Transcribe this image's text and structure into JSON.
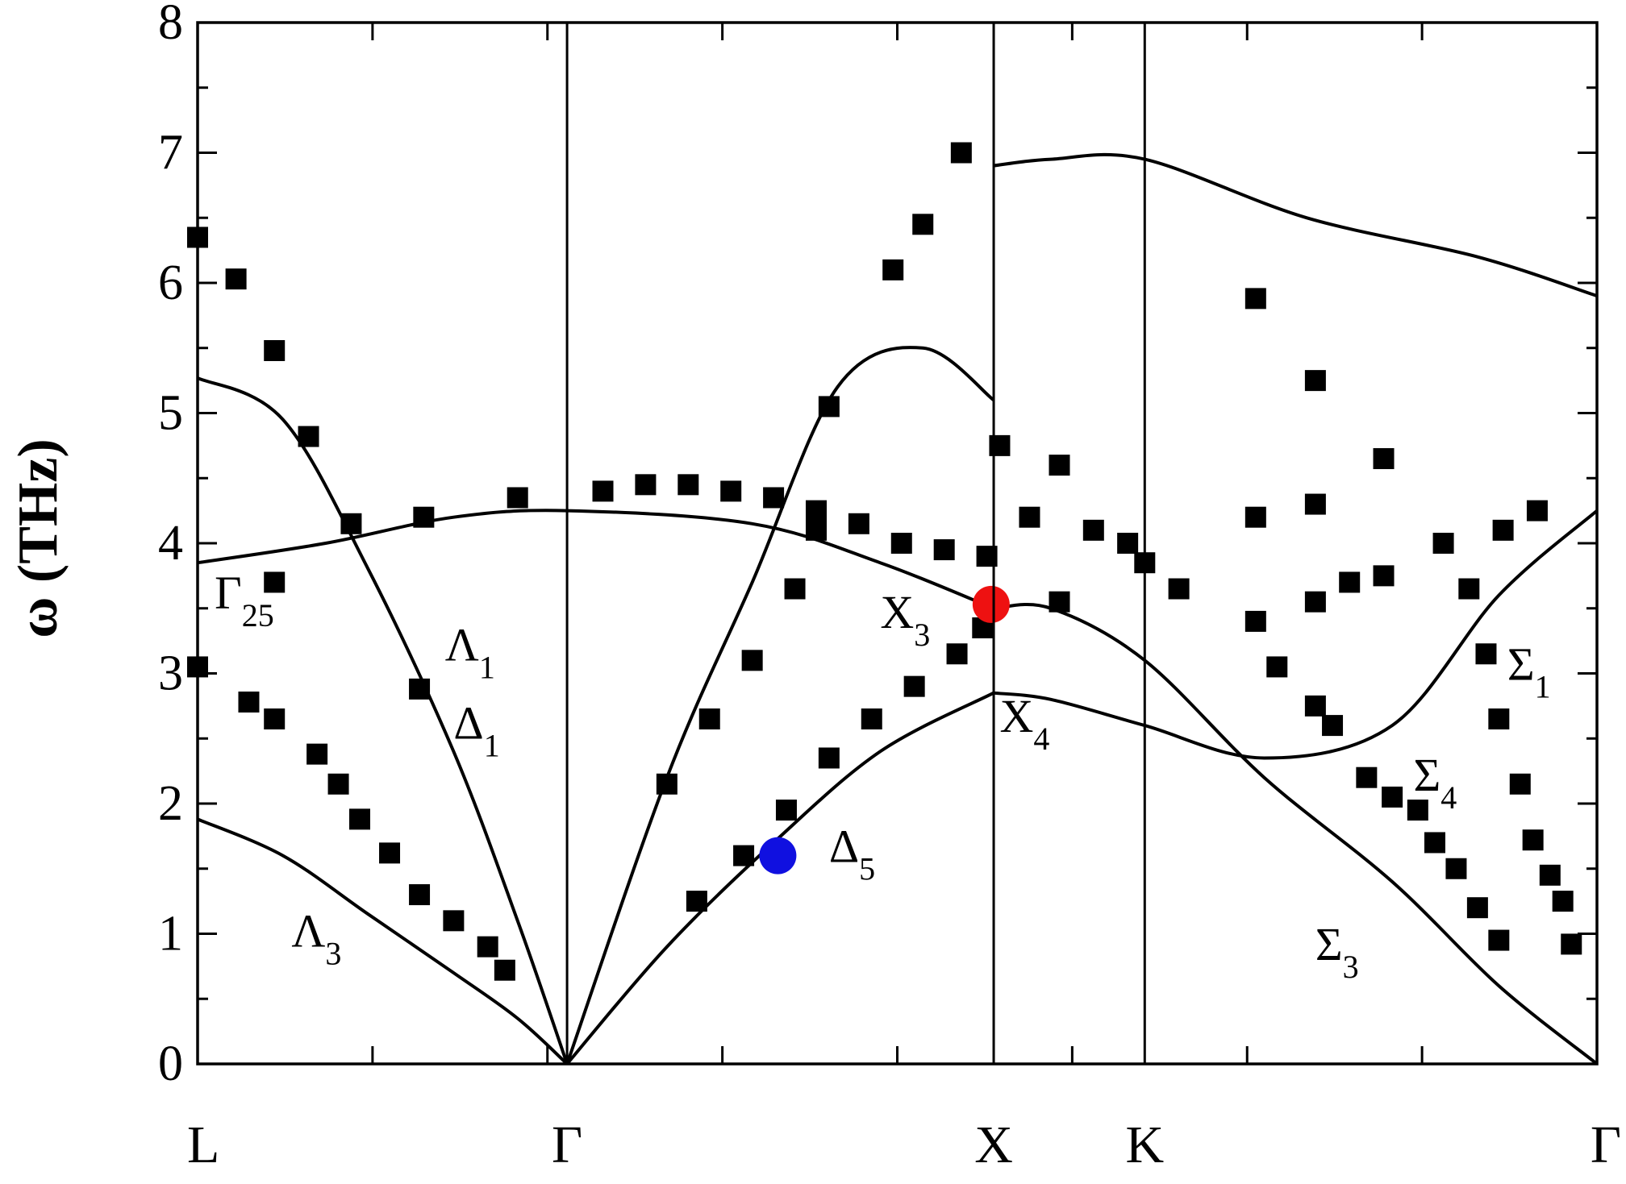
{
  "chart_data": {
    "type": "line",
    "ylabel": "ω (THz)",
    "ylim": [
      0,
      8
    ],
    "yticks": [
      0,
      1,
      2,
      3,
      4,
      5,
      6,
      7,
      8
    ],
    "x_points": [
      "L",
      "Γ",
      "X",
      "K",
      "Γ"
    ],
    "x_path_positions": [
      0,
      0.866,
      1.866,
      2.22,
      3.28
    ],
    "grid": false,
    "legend": "none",
    "branches": [
      {
        "x": [
          0,
          0.2,
          0.4,
          0.6,
          0.75,
          0.866
        ],
        "y": [
          1.88,
          1.6,
          1.15,
          0.7,
          0.35,
          0
        ]
      },
      {
        "x": [
          0,
          0.2,
          0.4,
          0.6,
          0.75,
          0.866
        ],
        "y": [
          5.27,
          4.95,
          3.8,
          2.4,
          1.1,
          0
        ]
      },
      {
        "x": [
          0.866,
          1.1,
          1.35,
          1.6,
          1.866
        ],
        "y": [
          0,
          0.9,
          1.7,
          2.4,
          2.85
        ]
      },
      {
        "x": [
          0.866,
          1.1,
          1.3,
          1.5,
          1.7,
          1.866
        ],
        "y": [
          0,
          2.2,
          3.7,
          5.2,
          5.5,
          5.1
        ]
      },
      {
        "x": [
          1.866,
          2.0,
          2.22,
          2.5,
          2.8,
          3.05,
          3.28
        ],
        "y": [
          2.85,
          2.8,
          2.6,
          2.35,
          2.6,
          3.6,
          4.25
        ]
      },
      {
        "x": [
          1.866,
          2.0,
          2.22,
          2.5,
          2.8,
          3.05,
          3.28
        ],
        "y": [
          3.5,
          3.5,
          3.1,
          2.2,
          1.4,
          0.6,
          0
        ]
      },
      {
        "x": [
          1.866,
          2.0,
          2.22,
          2.6,
          3.0,
          3.28
        ],
        "y": [
          6.9,
          6.95,
          6.95,
          6.5,
          6.2,
          5.9
        ]
      },
      {
        "x": [
          0,
          0.3,
          0.6,
          0.866,
          1.3,
          1.6,
          1.866
        ],
        "y": [
          3.85,
          4.0,
          4.2,
          4.25,
          4.15,
          3.85,
          3.5
        ]
      }
    ],
    "experimental_points": [
      {
        "x": 0.0,
        "y": 6.35
      },
      {
        "x": 0.09,
        "y": 6.03
      },
      {
        "x": 0.18,
        "y": 5.48
      },
      {
        "x": 0.26,
        "y": 4.82
      },
      {
        "x": 0.36,
        "y": 4.15
      },
      {
        "x": 0.53,
        "y": 4.2
      },
      {
        "x": 0.75,
        "y": 4.35
      },
      {
        "x": 0.0,
        "y": 3.05
      },
      {
        "x": 0.12,
        "y": 2.78
      },
      {
        "x": 0.18,
        "y": 2.65
      },
      {
        "x": 0.28,
        "y": 2.38
      },
      {
        "x": 0.33,
        "y": 2.15
      },
      {
        "x": 0.38,
        "y": 1.88
      },
      {
        "x": 0.45,
        "y": 1.62
      },
      {
        "x": 0.52,
        "y": 1.3
      },
      {
        "x": 0.6,
        "y": 1.1
      },
      {
        "x": 0.68,
        "y": 0.9
      },
      {
        "x": 0.72,
        "y": 0.72
      },
      {
        "x": 0.18,
        "y": 3.7
      },
      {
        "x": 0.52,
        "y": 2.88
      },
      {
        "x": 0.95,
        "y": 4.4
      },
      {
        "x": 1.05,
        "y": 4.45
      },
      {
        "x": 1.15,
        "y": 4.45
      },
      {
        "x": 1.25,
        "y": 4.4
      },
      {
        "x": 1.35,
        "y": 4.35
      },
      {
        "x": 1.45,
        "y": 4.25
      },
      {
        "x": 1.55,
        "y": 4.15
      },
      {
        "x": 1.65,
        "y": 4.0
      },
      {
        "x": 1.75,
        "y": 3.95
      },
      {
        "x": 1.85,
        "y": 3.9
      },
      {
        "x": 1.1,
        "y": 2.15
      },
      {
        "x": 1.2,
        "y": 2.65
      },
      {
        "x": 1.3,
        "y": 3.1
      },
      {
        "x": 1.4,
        "y": 3.65
      },
      {
        "x": 1.45,
        "y": 4.1
      },
      {
        "x": 1.17,
        "y": 1.25
      },
      {
        "x": 1.28,
        "y": 1.6
      },
      {
        "x": 1.38,
        "y": 1.95
      },
      {
        "x": 1.48,
        "y": 2.35
      },
      {
        "x": 1.58,
        "y": 2.65
      },
      {
        "x": 1.68,
        "y": 2.9
      },
      {
        "x": 1.78,
        "y": 3.15
      },
      {
        "x": 1.84,
        "y": 3.35
      },
      {
        "x": 1.79,
        "y": 7.0
      },
      {
        "x": 1.63,
        "y": 6.1
      },
      {
        "x": 1.7,
        "y": 6.45
      },
      {
        "x": 1.48,
        "y": 5.05
      },
      {
        "x": 1.88,
        "y": 4.75
      },
      {
        "x": 1.95,
        "y": 4.2
      },
      {
        "x": 2.02,
        "y": 4.6
      },
      {
        "x": 2.1,
        "y": 4.1
      },
      {
        "x": 2.18,
        "y": 4.0
      },
      {
        "x": 2.22,
        "y": 3.85
      },
      {
        "x": 2.3,
        "y": 3.65
      },
      {
        "x": 2.02,
        "y": 3.55
      },
      {
        "x": 2.48,
        "y": 3.4
      },
      {
        "x": 2.53,
        "y": 3.05
      },
      {
        "x": 2.48,
        "y": 4.2
      },
      {
        "x": 2.62,
        "y": 4.3
      },
      {
        "x": 2.62,
        "y": 5.25
      },
      {
        "x": 2.48,
        "y": 5.88
      },
      {
        "x": 2.62,
        "y": 3.55
      },
      {
        "x": 2.7,
        "y": 3.7
      },
      {
        "x": 2.78,
        "y": 3.75
      },
      {
        "x": 2.78,
        "y": 4.65
      },
      {
        "x": 2.62,
        "y": 2.75
      },
      {
        "x": 2.66,
        "y": 2.6
      },
      {
        "x": 2.74,
        "y": 2.2
      },
      {
        "x": 2.8,
        "y": 2.05
      },
      {
        "x": 2.86,
        "y": 1.95
      },
      {
        "x": 2.9,
        "y": 1.7
      },
      {
        "x": 2.95,
        "y": 1.5
      },
      {
        "x": 3.0,
        "y": 1.2
      },
      {
        "x": 3.05,
        "y": 0.95
      },
      {
        "x": 2.92,
        "y": 4.0
      },
      {
        "x": 2.98,
        "y": 3.65
      },
      {
        "x": 3.02,
        "y": 3.15
      },
      {
        "x": 3.05,
        "y": 2.65
      },
      {
        "x": 3.1,
        "y": 2.15
      },
      {
        "x": 3.13,
        "y": 1.72
      },
      {
        "x": 3.17,
        "y": 1.45
      },
      {
        "x": 3.2,
        "y": 1.25
      },
      {
        "x": 3.22,
        "y": 0.92
      },
      {
        "x": 3.06,
        "y": 4.1
      },
      {
        "x": 3.14,
        "y": 4.25
      }
    ],
    "highlight_points": [
      {
        "x": 1.36,
        "y": 1.6,
        "color": "#1010e0"
      },
      {
        "x": 1.86,
        "y": 3.53,
        "color": "#ee1111"
      }
    ],
    "annotations": [
      {
        "main": "Γ",
        "sub": "25",
        "x": 0.04,
        "y": 3.5
      },
      {
        "main": "Λ",
        "sub": "1",
        "x": 0.58,
        "y": 3.1
      },
      {
        "main": "Λ",
        "sub": "3",
        "x": 0.22,
        "y": 0.9
      },
      {
        "main": "Δ",
        "sub": "1",
        "x": 0.6,
        "y": 2.5
      },
      {
        "main": "Δ",
        "sub": "5",
        "x": 1.48,
        "y": 1.55
      },
      {
        "main": "X",
        "sub": "3",
        "x": 1.6,
        "y": 3.35
      },
      {
        "main": "X",
        "sub": "4",
        "x": 1.88,
        "y": 2.55
      },
      {
        "main": "Σ",
        "sub": "1",
        "x": 3.07,
        "y": 2.95
      },
      {
        "main": "Σ",
        "sub": "4",
        "x": 2.85,
        "y": 2.1
      },
      {
        "main": "Σ",
        "sub": "3",
        "x": 2.62,
        "y": 0.8
      }
    ]
  }
}
